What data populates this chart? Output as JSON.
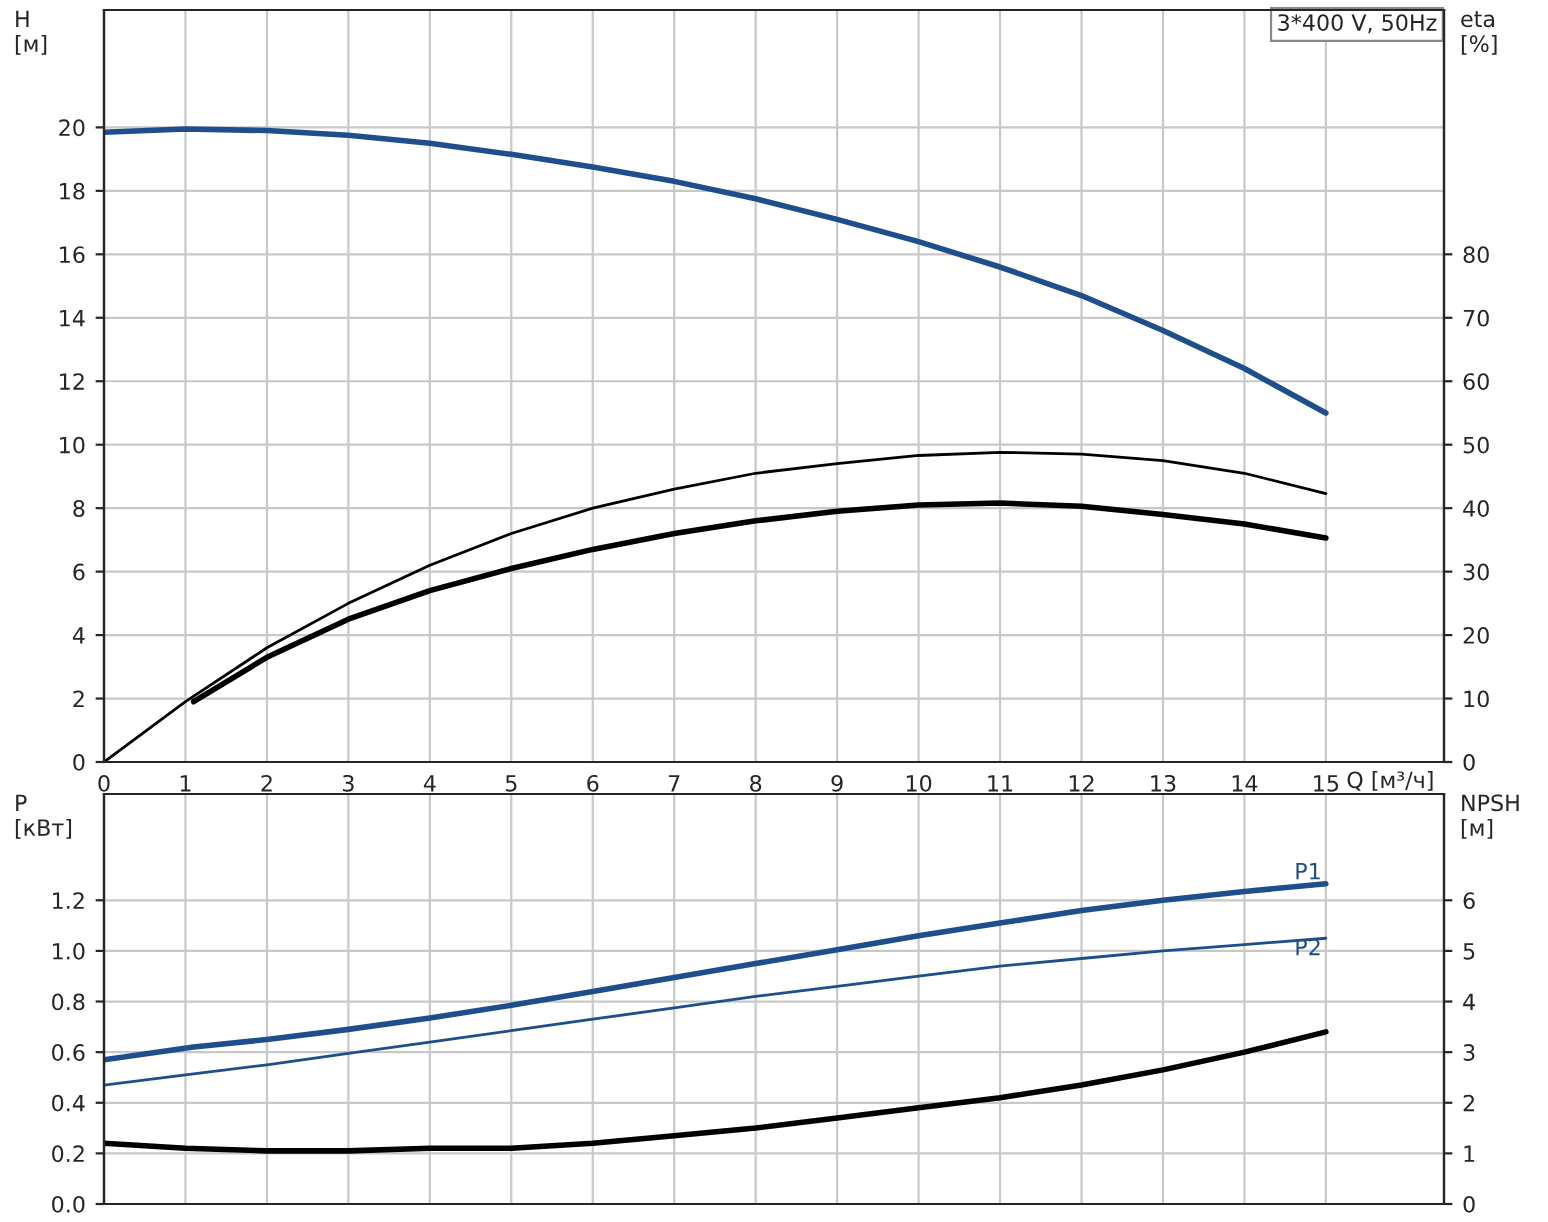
{
  "chart_data": [
    {
      "type": "line",
      "title": "3*400 V, 50Hz",
      "xlabel": "Q [м³/ч]",
      "ylabel": "H\n[м]",
      "y2label": "eta\n[%]",
      "xlim": [
        0,
        16.45
      ],
      "xticks": [
        0,
        1,
        2,
        3,
        4,
        5,
        6,
        7,
        8,
        9,
        10,
        11,
        12,
        13,
        14,
        15
      ],
      "ylim": [
        0,
        23.7
      ],
      "yticks": [
        0,
        2,
        4,
        6,
        8,
        10,
        12,
        14,
        16,
        18,
        20
      ],
      "y2lim": [
        0,
        118.5
      ],
      "y2ticks": [
        0,
        10,
        20,
        30,
        40,
        50,
        60,
        70,
        80
      ],
      "grid": true,
      "legend": false,
      "series": [
        {
          "color": "#1f4e8c",
          "x": [
            0,
            1,
            2,
            3,
            4,
            5,
            6,
            7,
            8,
            9,
            10,
            11,
            12,
            13,
            14,
            15
          ],
          "values": [
            19.85,
            19.95,
            19.9,
            19.75,
            19.5,
            19.15,
            18.75,
            18.3,
            17.75,
            17.1,
            16.4,
            15.6,
            14.7,
            13.6,
            12.4,
            11.0
          ]
        },
        {
          "color": "#000000",
          "axis": "y2",
          "x": [
            0,
            1,
            2,
            3,
            4,
            5,
            6,
            7,
            8,
            9,
            10,
            11,
            12,
            13,
            14,
            15
          ],
          "values": [
            0,
            9.5,
            18,
            25,
            31,
            36,
            40,
            43,
            45.5,
            47,
            48.3,
            48.8,
            48.5,
            47.5,
            45.5,
            42.3
          ]
        },
        {
          "color": "#000000",
          "axis": "y2",
          "x": [
            1.1,
            2,
            3,
            4,
            5,
            6,
            7,
            8,
            9,
            10,
            11,
            12,
            13,
            14,
            15
          ],
          "values": [
            9.5,
            16.5,
            22.5,
            27,
            30.5,
            33.5,
            36,
            38,
            39.5,
            40.5,
            40.8,
            40.3,
            39,
            37.5,
            35.3
          ]
        }
      ]
    },
    {
      "type": "line",
      "ylabel": "P\n[кВт]",
      "y2label": "NPSH\n[м]",
      "xlim": [
        0,
        16.45
      ],
      "ylim": [
        0,
        1.62
      ],
      "yticks": [
        {
          "value": 0,
          "label": "0.0"
        },
        0.2,
        0.4,
        0.6,
        0.8,
        {
          "value": 1,
          "label": "1.0"
        },
        1.2
      ],
      "y2lim": [
        0,
        8.1
      ],
      "y2ticks": [
        0,
        1,
        2,
        3,
        4,
        5,
        6
      ],
      "grid": true,
      "legend": false,
      "tick_labels": "y",
      "series": [
        {
          "name": "P1",
          "color": "#1f4e8c",
          "x": [
            0,
            1.1,
            2,
            3,
            4,
            5,
            6,
            7,
            8,
            9,
            10,
            11,
            12,
            13,
            14,
            15
          ],
          "values": [
            0.57,
            0.62,
            0.65,
            0.69,
            0.735,
            0.785,
            0.84,
            0.895,
            0.95,
            1.005,
            1.06,
            1.11,
            1.16,
            1.2,
            1.235,
            1.265
          ]
        },
        {
          "name": "P2",
          "color": "#1f4e8c",
          "x": [
            0,
            1,
            2,
            3,
            4,
            5,
            6,
            7,
            8,
            9,
            10,
            11,
            12,
            13,
            14,
            15
          ],
          "values": [
            0.47,
            0.51,
            0.55,
            0.595,
            0.64,
            0.685,
            0.73,
            0.775,
            0.82,
            0.86,
            0.9,
            0.94,
            0.97,
            1.0,
            1.025,
            1.05
          ]
        },
        {
          "color": "#000000",
          "axis": "y2",
          "x": [
            0,
            1,
            2,
            3,
            4,
            5,
            6,
            7,
            8,
            9,
            10,
            11,
            12,
            13,
            14,
            15
          ],
          "values": [
            1.2,
            1.1,
            1.05,
            1.05,
            1.1,
            1.1,
            1.2,
            1.35,
            1.5,
            1.7,
            1.9,
            2.1,
            2.35,
            2.65,
            3.0,
            3.4
          ]
        }
      ]
    }
  ]
}
